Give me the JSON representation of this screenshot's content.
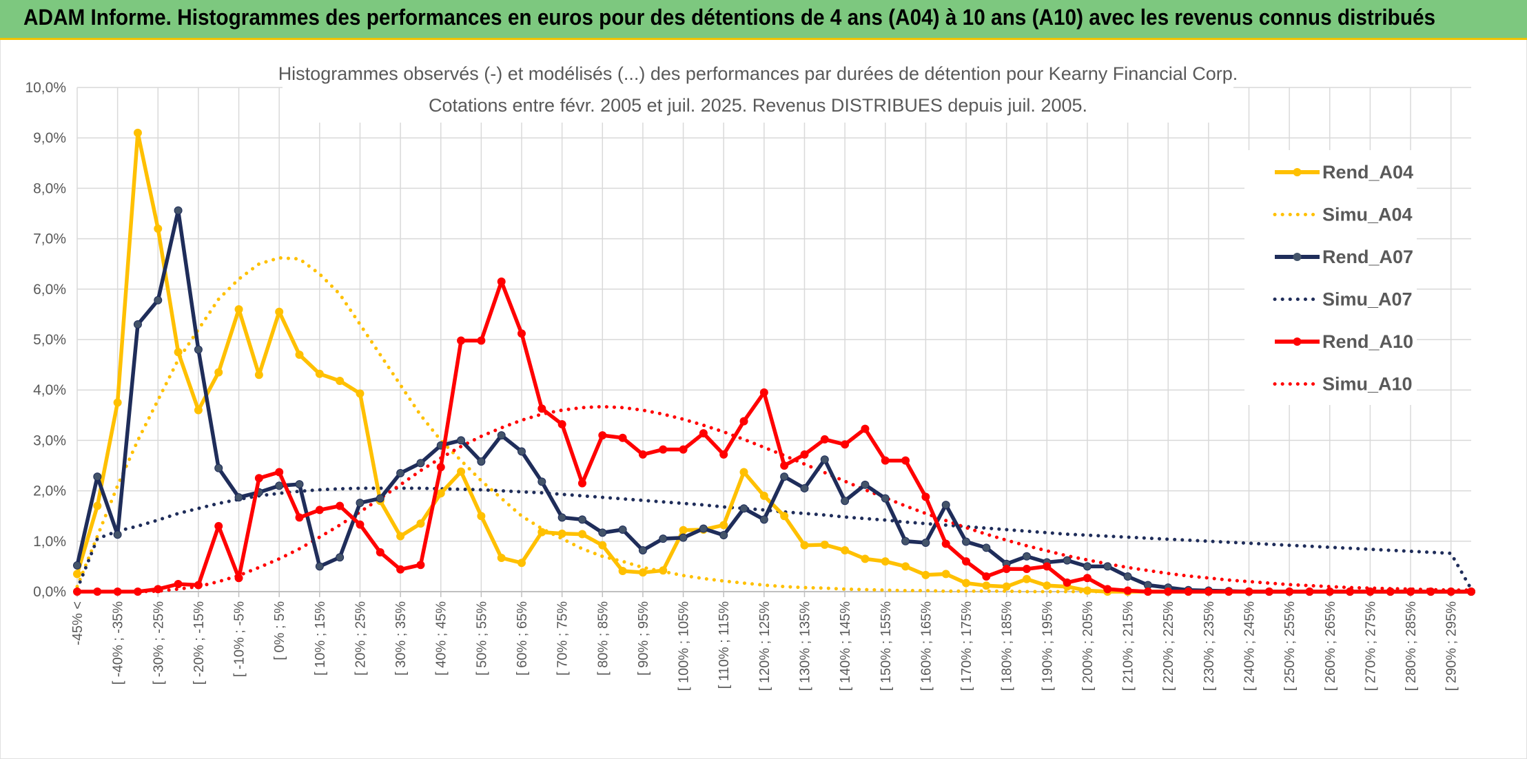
{
  "banner": {
    "title": "ADAM Informe. Histogrammes des performances en euros pour des détentions de 4 ans (A04) à 10 ans (A10) avec les revenus connus distribués",
    "color": "#7dc87f"
  },
  "chart_data": {
    "type": "line",
    "title": "Histogrammes observés (-) et modélisés (...) des performances par durées de détention pour Kearny Financial Corp.",
    "subtitle": "Cotations entre févr. 2005 et juil. 2025. Revenus DISTRIBUES depuis juil. 2005.",
    "xlabel": "",
    "ylabel": "",
    "ylim": [
      0,
      10
    ],
    "y_ticks": [
      "0,0%",
      "1,0%",
      "2,0%",
      "3,0%",
      "4,0%",
      "5,0%",
      "6,0%",
      "7,0%",
      "8,0%",
      "9,0%",
      "10,0%"
    ],
    "grid": true,
    "legend_position": "right",
    "categories_labeled": [
      "-45% <",
      "[ -40% ; -35%",
      "[ -30% ; -25%",
      "[ -20% ; -15%",
      "[ -10% ; -5%",
      "[ 0% ; 5%",
      "[ 10% ; 15%",
      "[ 20% ; 25%",
      "[ 30% ; 35%",
      "[ 40% ; 45%",
      "[ 50% ; 55%",
      "[ 60% ; 65%",
      "[ 70% ; 75%",
      "[ 80% ; 85%",
      "[ 90% ; 95%",
      "[ 100% ; 105%",
      "[ 110% ; 115%",
      "[ 120% ; 125%",
      "[ 130% ; 135%",
      "[ 140% ; 145%",
      "[ 150% ; 155%",
      "[ 160% ; 165%",
      "[ 170% ; 175%",
      "[ 180% ; 185%",
      "[ 190% ; 195%",
      "[ 200% ; 205%",
      "[ 210% ; 215%",
      "[ 220% ; 225%",
      "[ 230% ; 235%",
      "[ 240% ; 245%",
      "[ 250% ; 255%",
      "[ 260% ; 265%",
      "[ 270% ; 275%",
      "[ 280% ; 285%",
      "[ 290% ; 295%"
    ],
    "category_count": 70,
    "series": [
      {
        "name": "Rend_A04",
        "style": "solid",
        "color": "#ffc000",
        "values": [
          0.35,
          1.7,
          3.75,
          9.1,
          7.2,
          4.75,
          3.6,
          4.35,
          5.6,
          4.3,
          5.55,
          4.7,
          4.32,
          4.18,
          3.93,
          1.8,
          1.1,
          1.35,
          1.95,
          2.38,
          1.5,
          0.67,
          0.57,
          1.18,
          1.15,
          1.14,
          0.92,
          0.41,
          0.38,
          0.42,
          1.22,
          1.23,
          1.32,
          2.37,
          1.9,
          1.5,
          0.92,
          0.93,
          0.82,
          0.65,
          0.6,
          0.5,
          0.33,
          0.35,
          0.17,
          0.12,
          0.1,
          0.25,
          0.12,
          0.1,
          0.02,
          0,
          0,
          0,
          0,
          0,
          0,
          0,
          0,
          0,
          0,
          0,
          0,
          0,
          0,
          0,
          0,
          0,
          0,
          0
        ]
      },
      {
        "name": "Simu_A04",
        "style": "dotted",
        "color": "#ffc000",
        "values": [
          0.1,
          1.1,
          2.1,
          3.0,
          3.8,
          4.6,
          5.2,
          5.8,
          6.2,
          6.5,
          6.62,
          6.6,
          6.3,
          5.9,
          5.3,
          4.7,
          4.1,
          3.5,
          3.0,
          2.6,
          2.2,
          1.85,
          1.5,
          1.25,
          1.05,
          0.85,
          0.7,
          0.6,
          0.48,
          0.4,
          0.32,
          0.26,
          0.21,
          0.17,
          0.13,
          0.1,
          0.08,
          0.07,
          0.05,
          0.04,
          0.03,
          0.02,
          0.02,
          0.01,
          0.01,
          0.01,
          0.01,
          0,
          0,
          0,
          0,
          0,
          0,
          0,
          0,
          0,
          0,
          0,
          0,
          0,
          0,
          0,
          0,
          0,
          0,
          0,
          0,
          0,
          0,
          0
        ]
      },
      {
        "name": "Rend_A07",
        "style": "solid",
        "color": "#1f2d5a",
        "values": [
          0.52,
          2.28,
          1.13,
          5.3,
          5.78,
          7.56,
          4.8,
          2.45,
          1.87,
          1.97,
          2.1,
          2.13,
          0.5,
          0.68,
          1.76,
          1.85,
          2.35,
          2.55,
          2.9,
          3.0,
          2.58,
          3.1,
          2.78,
          2.18,
          1.47,
          1.43,
          1.17,
          1.23,
          0.82,
          1.05,
          1.07,
          1.25,
          1.12,
          1.65,
          1.43,
          2.28,
          2.05,
          2.62,
          1.8,
          2.12,
          1.85,
          1.0,
          0.97,
          1.72,
          0.99,
          0.87,
          0.55,
          0.7,
          0.58,
          0.62,
          0.5,
          0.5,
          0.3,
          0.13,
          0.08,
          0.03,
          0.02,
          0.01,
          0,
          0,
          0,
          0,
          0,
          0,
          0,
          0,
          0,
          0,
          0,
          0
        ]
      },
      {
        "name": "Simu_A07",
        "style": "dotted",
        "color": "#1f2d5a",
        "values": [
          0.05,
          1.05,
          1.2,
          1.3,
          1.42,
          1.55,
          1.65,
          1.75,
          1.83,
          1.9,
          1.95,
          1.99,
          2.02,
          2.04,
          2.05,
          2.05,
          2.05,
          2.05,
          2.04,
          2.03,
          2.02,
          2.0,
          1.98,
          1.96,
          1.93,
          1.9,
          1.87,
          1.84,
          1.81,
          1.78,
          1.75,
          1.72,
          1.68,
          1.65,
          1.62,
          1.58,
          1.55,
          1.52,
          1.48,
          1.45,
          1.42,
          1.38,
          1.35,
          1.32,
          1.29,
          1.26,
          1.23,
          1.2,
          1.17,
          1.14,
          1.12,
          1.1,
          1.08,
          1.06,
          1.04,
          1.02,
          1.0,
          0.98,
          0.96,
          0.94,
          0.92,
          0.9,
          0.88,
          0.86,
          0.84,
          0.82,
          0.8,
          0.78,
          0.76,
          0.05
        ]
      },
      {
        "name": "Rend_A10",
        "style": "solid",
        "color": "#ff0000",
        "values": [
          0,
          0,
          0,
          0,
          0.05,
          0.15,
          0.13,
          1.3,
          0.27,
          2.25,
          2.37,
          1.47,
          1.62,
          1.7,
          1.33,
          0.78,
          0.44,
          0.53,
          2.47,
          4.98,
          4.98,
          6.15,
          5.12,
          3.63,
          3.32,
          2.15,
          3.1,
          3.05,
          2.72,
          2.82,
          2.82,
          3.14,
          2.72,
          3.38,
          3.95,
          2.5,
          2.72,
          3.02,
          2.92,
          3.23,
          2.6,
          2.6,
          1.88,
          0.95,
          0.6,
          0.3,
          0.45,
          0.45,
          0.5,
          0.18,
          0.27,
          0.05,
          0.02,
          0,
          0,
          0,
          0,
          0,
          0,
          0,
          0,
          0,
          0,
          0,
          0,
          0,
          0,
          0,
          0,
          0
        ]
      },
      {
        "name": "Simu_A10",
        "style": "dotted",
        "color": "#ff0000",
        "values": [
          0,
          0,
          0,
          0,
          0.01,
          0.05,
          0.1,
          0.2,
          0.32,
          0.48,
          0.65,
          0.85,
          1.08,
          1.32,
          1.58,
          1.85,
          2.12,
          2.4,
          2.65,
          2.88,
          3.08,
          3.25,
          3.4,
          3.52,
          3.6,
          3.65,
          3.67,
          3.65,
          3.6,
          3.52,
          3.42,
          3.3,
          3.17,
          3.02,
          2.86,
          2.7,
          2.53,
          2.36,
          2.19,
          2.02,
          1.86,
          1.7,
          1.55,
          1.41,
          1.27,
          1.14,
          1.02,
          0.91,
          0.81,
          0.71,
          0.63,
          0.55,
          0.48,
          0.42,
          0.36,
          0.31,
          0.27,
          0.23,
          0.2,
          0.17,
          0.14,
          0.12,
          0.1,
          0.08,
          0.07,
          0.06,
          0.05,
          0.04,
          0.03,
          0.03
        ]
      }
    ]
  }
}
